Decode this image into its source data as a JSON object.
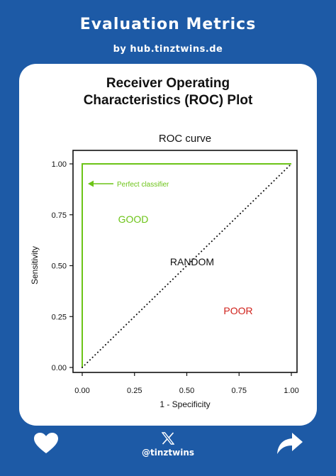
{
  "header": {
    "title": "Evaluation Metrics",
    "subtitle": "by hub.tinztwins.de"
  },
  "card": {
    "title_line1": "Receiver Operating",
    "title_line2": "Characteristics (ROC) Plot"
  },
  "chart_data": {
    "type": "line",
    "title": "ROC curve",
    "xlabel": "1 - Specificity",
    "ylabel": "Sensitivity",
    "xlim": [
      0,
      1
    ],
    "ylim": [
      0,
      1
    ],
    "xticks": [
      "0.00",
      "0.25",
      "0.50",
      "0.75",
      "1.00"
    ],
    "yticks": [
      "0.00",
      "0.25",
      "0.50",
      "0.75",
      "1.00"
    ],
    "grid": false,
    "series": [
      {
        "name": "Perfect classifier",
        "color": "#6cc417",
        "style": "solid",
        "x": [
          0,
          0,
          1
        ],
        "y": [
          0,
          1,
          1
        ]
      },
      {
        "name": "",
        "color": "#111111",
        "style": "dotted",
        "x": [
          0,
          1
        ],
        "y": [
          0,
          1
        ]
      }
    ],
    "annotations": [
      {
        "text": "Perfect classifier",
        "color": "#6cc417",
        "arrow": true
      },
      {
        "text": "GOOD",
        "color": "#6cc417"
      },
      {
        "text": "RANDOM",
        "color": "#111111"
      },
      {
        "text": "POOR",
        "color": "#d0211b"
      }
    ]
  },
  "footer": {
    "handle": "@tinztwins",
    "icons": [
      "heart-icon",
      "x-logo-icon",
      "share-arrow-icon"
    ]
  }
}
